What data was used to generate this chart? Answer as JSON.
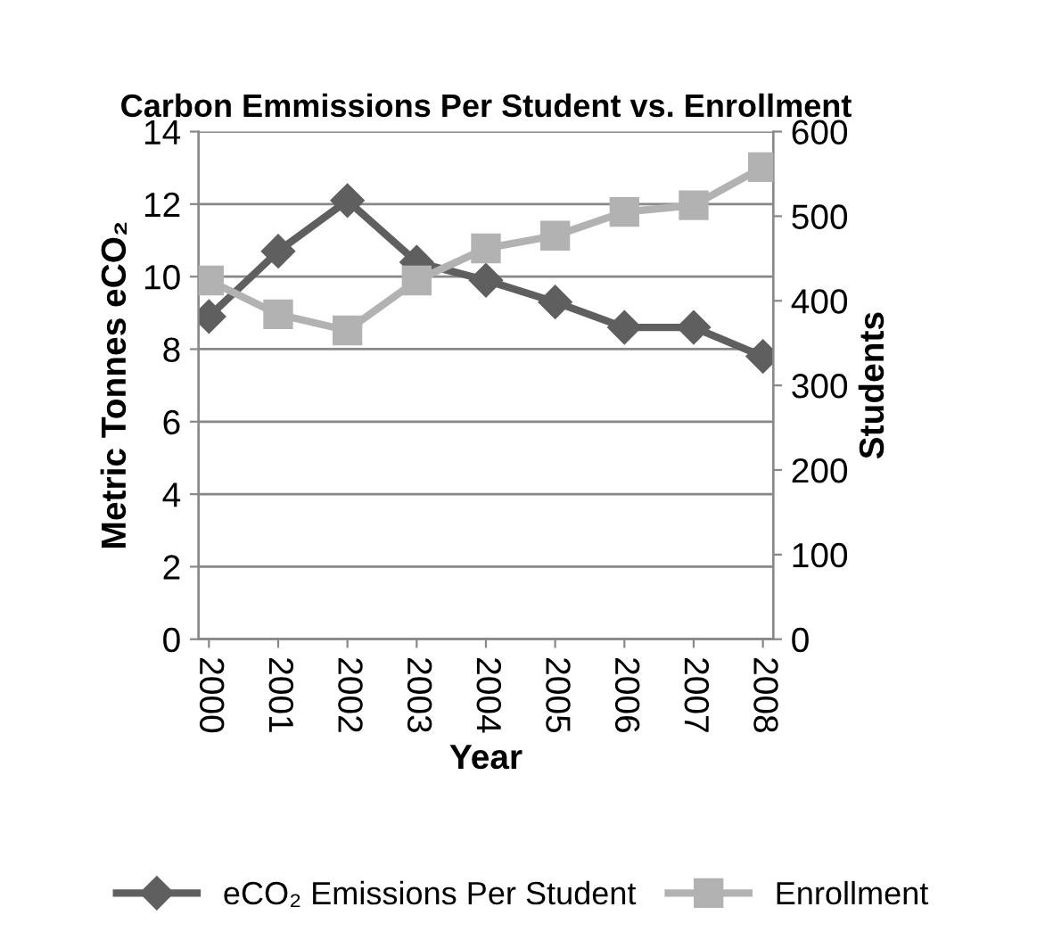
{
  "chart_data": {
    "type": "line",
    "title": "Carbon Emmissions Per Student vs. Enrollment",
    "xlabel": "Year",
    "ylabel": "Metric Tonnes eCO₂",
    "y2label": "Students",
    "categories": [
      "2000",
      "2001",
      "2002",
      "2003",
      "2004",
      "2005",
      "2006",
      "2007",
      "2008"
    ],
    "series": [
      {
        "name": "eCO₂ Emissions Per Student",
        "color": "#5f5f5f",
        "marker": "diamond",
        "values": [
          8.9,
          10.7,
          12.1,
          10.4,
          9.9,
          9.3,
          8.6,
          8.6,
          7.8
        ]
      },
      {
        "name": "Enrollment",
        "color": "#b2b2b2",
        "marker": "square",
        "axis": "y2",
        "values": [
          424,
          384,
          365,
          424,
          462,
          477,
          505,
          513,
          558
        ]
      }
    ],
    "ylim": [
      0,
      14
    ],
    "yticks": [
      0,
      2,
      4,
      6,
      8,
      10,
      12,
      14
    ],
    "y2lim": [
      0,
      600
    ],
    "y2ticks": [
      0,
      100,
      200,
      300,
      400,
      500,
      600
    ],
    "grid": "y",
    "legend": "bottom"
  }
}
